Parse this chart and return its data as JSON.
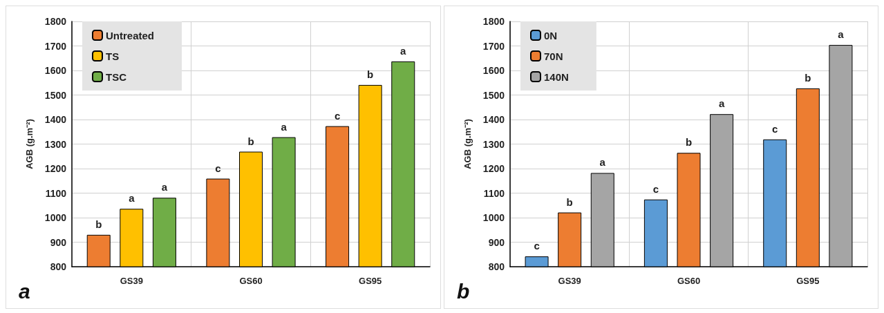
{
  "chart_data": [
    {
      "type": "bar",
      "ylabel": "AGB (g.m⁻²)",
      "categories": [
        "GS39",
        "GS60",
        "GS95"
      ],
      "series": [
        {
          "name": "Untreated",
          "color": "#ed7d31",
          "values": [
            930,
            1159,
            1373
          ],
          "value_labels": [
            "b",
            "c",
            "c"
          ]
        },
        {
          "name": "TS",
          "color": "#ffc000",
          "values": [
            1036,
            1269,
            1541
          ],
          "value_labels": [
            "a",
            "b",
            "b"
          ]
        },
        {
          "name": "TSC",
          "color": "#70ad47",
          "values": [
            1081,
            1328,
            1637
          ],
          "value_labels": [
            "a",
            "a",
            "a"
          ]
        }
      ],
      "ylim": [
        800,
        1800
      ],
      "yticks": [
        800,
        900,
        1000,
        1100,
        1200,
        1300,
        1400,
        1500,
        1600,
        1700,
        1800
      ],
      "grid": true,
      "legend": "top left",
      "annotations": [
        "a"
      ]
    },
    {
      "type": "bar",
      "ylabel": "AGB (g.m⁻²)",
      "categories": [
        "GS39",
        "GS60",
        "GS95"
      ],
      "series": [
        {
          "name": "0N",
          "color": "#5b9bd5",
          "values": [
            842,
            1074,
            1319
          ],
          "value_labels": [
            "c",
            "c",
            "c"
          ]
        },
        {
          "name": "70N",
          "color": "#ed7d31",
          "values": [
            1021,
            1264,
            1527
          ],
          "value_labels": [
            "b",
            "b",
            "b"
          ]
        },
        {
          "name": "140N",
          "color": "#a5a5a5",
          "values": [
            1182,
            1422,
            1704
          ],
          "value_labels": [
            "a",
            "a",
            "a"
          ]
        }
      ],
      "ylim": [
        800,
        1800
      ],
      "yticks": [
        800,
        900,
        1000,
        1100,
        1200,
        1300,
        1400,
        1500,
        1600,
        1700,
        1800
      ],
      "grid": true,
      "legend": "top left",
      "annotations": [
        "b"
      ]
    }
  ]
}
